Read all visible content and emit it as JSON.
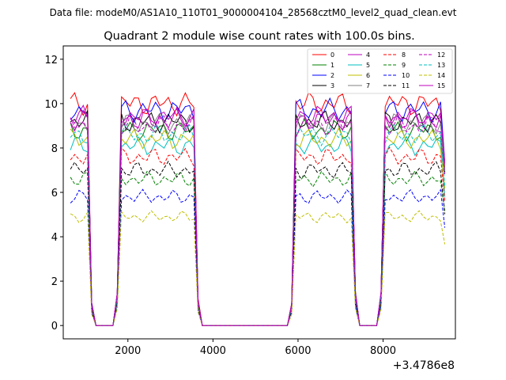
{
  "chart_data": {
    "type": "line",
    "suptitle": "Data file: modeM0/AS1A10_110T01_9000004104_28568cztM0_level2_quad_clean.evt",
    "title": "Quadrant 2 module wise count rates with 100.0s bins.",
    "xlabel": "",
    "ylabel": "",
    "x_offset_label": "+3.4786e8",
    "xlim": [
      480,
      9700
    ],
    "ylim": [
      -0.6,
      12.6
    ],
    "xticks": [
      2000,
      4000,
      6000,
      8000
    ],
    "xtick_labels": [
      "2000",
      "4000",
      "6000",
      "8000"
    ],
    "yticks": [
      0,
      2,
      4,
      6,
      8,
      10,
      12
    ],
    "ytick_labels": [
      "0",
      "2",
      "4",
      "6",
      "8",
      "10",
      "12"
    ],
    "grid": false,
    "legend_position": "top-right",
    "x": [
      650,
      750,
      850,
      950,
      1050,
      1150,
      1250,
      1350,
      1450,
      1550,
      1650,
      1750,
      1850,
      1950,
      2050,
      2150,
      2250,
      2350,
      2450,
      2550,
      2650,
      2750,
      2850,
      2950,
      3050,
      3150,
      3250,
      3350,
      3450,
      3550,
      3650,
      3750,
      3850,
      3950,
      4050,
      4150,
      4250,
      4350,
      4450,
      4550,
      4650,
      4750,
      4850,
      4950,
      5050,
      5150,
      5250,
      5350,
      5450,
      5550,
      5650,
      5750,
      5850,
      5950,
      6050,
      6150,
      6250,
      6350,
      6450,
      6550,
      6650,
      6750,
      6850,
      6950,
      7050,
      7150,
      7250,
      7350,
      7450,
      7550,
      7650,
      7750,
      7850,
      7950,
      8050,
      8150,
      8250,
      8350,
      8450,
      8550,
      8650,
      8750,
      8850,
      8950,
      9050,
      9150,
      9250,
      9350,
      9450
    ],
    "series": [
      {
        "name": "0",
        "color": "#ff0000",
        "dashed": false,
        "level": 10.0,
        "phase": 0
      },
      {
        "name": "1",
        "color": "#008000",
        "dashed": false,
        "level": 8.8,
        "phase": 1
      },
      {
        "name": "2",
        "color": "#0000ff",
        "dashed": false,
        "level": 9.7,
        "phase": 2
      },
      {
        "name": "3",
        "color": "#000000",
        "dashed": false,
        "level": 9.2,
        "phase": 3
      },
      {
        "name": "4",
        "color": "#bf00bf",
        "dashed": false,
        "level": 9.4,
        "phase": 4
      },
      {
        "name": "5",
        "color": "#00bfbf",
        "dashed": false,
        "level": 8.1,
        "phase": 5
      },
      {
        "name": "6",
        "color": "#bfbf00",
        "dashed": false,
        "level": 8.4,
        "phase": 6
      },
      {
        "name": "7",
        "color": "#808080",
        "dashed": false,
        "level": 9.1,
        "phase": 7
      },
      {
        "name": "8",
        "color": "#ff0000",
        "dashed": true,
        "level": 7.6,
        "phase": 8
      },
      {
        "name": "9",
        "color": "#008000",
        "dashed": true,
        "level": 6.6,
        "phase": 9
      },
      {
        "name": "10",
        "color": "#0000ff",
        "dashed": true,
        "level": 5.8,
        "phase": 10
      },
      {
        "name": "11",
        "color": "#000000",
        "dashed": true,
        "level": 7.0,
        "phase": 11
      },
      {
        "name": "12",
        "color": "#bf00bf",
        "dashed": true,
        "level": 9.0,
        "phase": 12
      },
      {
        "name": "13",
        "color": "#00bfbf",
        "dashed": true,
        "level": 8.6,
        "phase": 13
      },
      {
        "name": "14",
        "color": "#bfbf00",
        "dashed": true,
        "level": 4.9,
        "phase": 14
      },
      {
        "name": "15",
        "color": "#bf00bf",
        "dashed": false,
        "level": 9.3,
        "phase": 15
      }
    ],
    "profile": [
      1,
      1,
      1,
      1,
      1,
      0.1,
      0,
      0,
      0,
      0,
      0,
      0.15,
      1,
      1,
      1,
      1,
      1,
      1,
      1,
      1,
      1,
      1,
      1,
      1,
      1,
      1,
      1,
      1,
      1,
      1,
      0.12,
      0,
      0,
      0,
      0,
      0,
      0,
      0,
      0,
      0,
      0,
      0,
      0,
      0,
      0,
      0,
      0,
      0,
      0,
      0,
      0,
      0,
      0.1,
      1,
      1,
      1,
      1,
      1,
      1,
      1,
      1,
      1,
      1,
      1,
      1,
      1,
      1,
      0.15,
      0,
      0,
      0,
      0,
      0,
      0.15,
      1,
      1,
      1,
      1,
      1,
      1,
      1,
      1,
      1,
      1,
      1,
      1,
      1,
      1,
      0.75
    ]
  }
}
